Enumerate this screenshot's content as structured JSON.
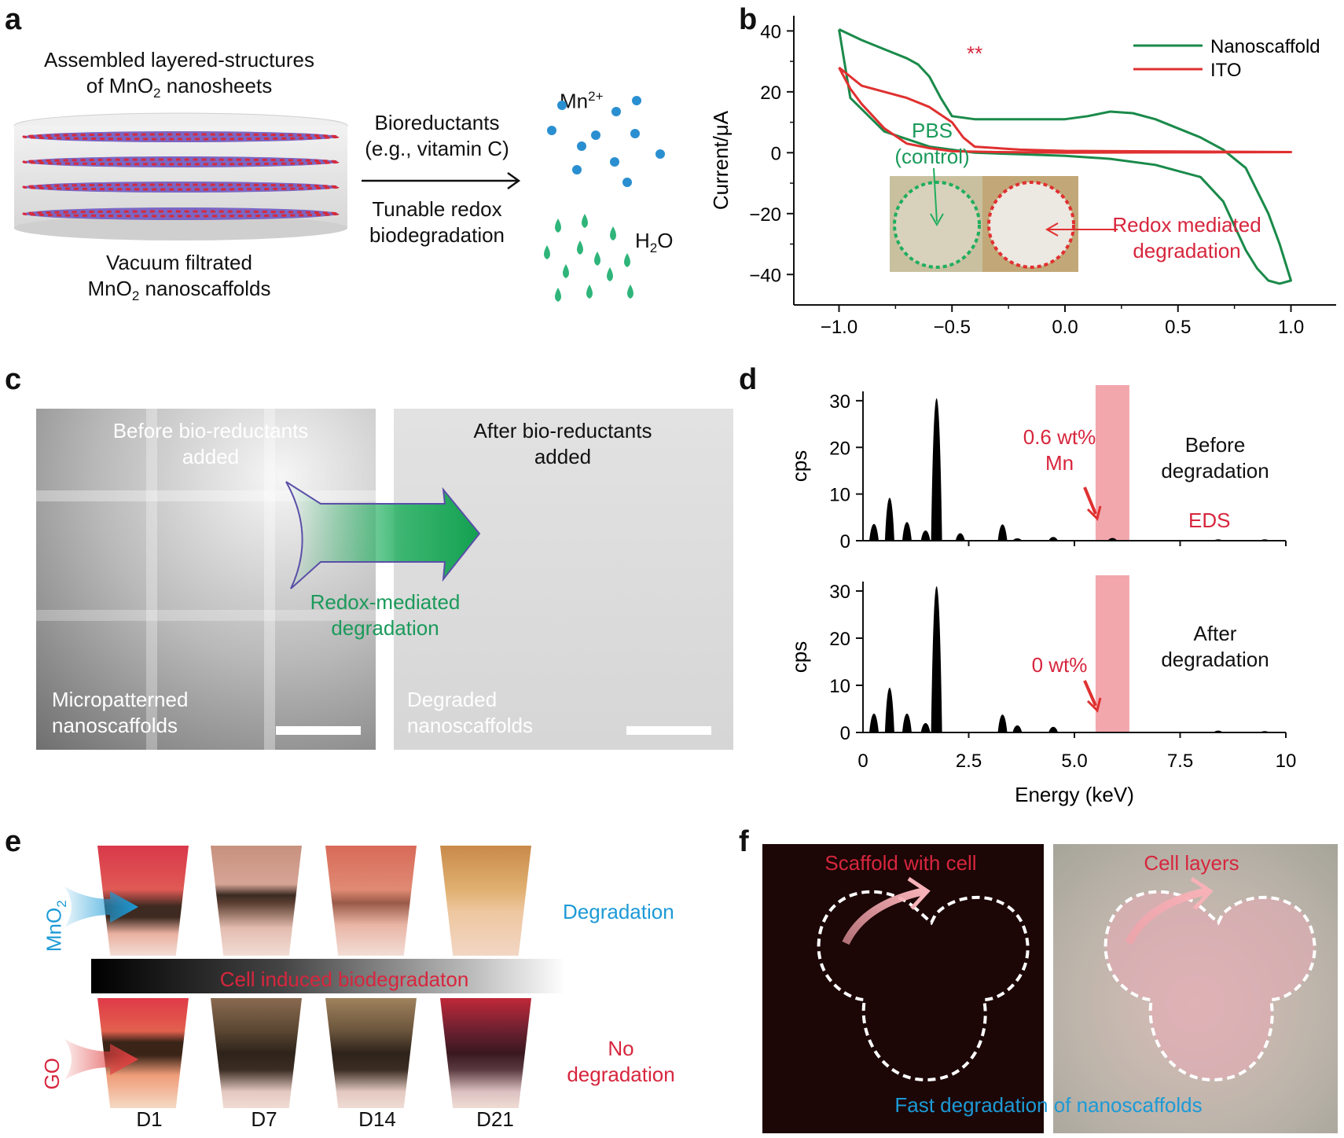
{
  "figure": {
    "panel_labels": [
      "a",
      "b",
      "c",
      "d",
      "e",
      "f"
    ]
  },
  "panel_a": {
    "title_line1": "Assembled layered-structures",
    "title_line2_pre": "of MnO",
    "title_line2_sub": "2",
    "title_line2_post": " nanosheets",
    "arrow_top_line1": "Bioreductants",
    "arrow_top_line2": "(e.g., vitamin C)",
    "arrow_bottom_line1": "Tunable redox",
    "arrow_bottom_line2": "biodegradation",
    "mn_label": "Mn",
    "mn_sup": "2+",
    "h2o_pre": "H",
    "h2o_sub": "2",
    "h2o_post": "O",
    "bottom_line1": "Vacuum filtrated",
    "bottom_line2_pre": "MnO",
    "bottom_line2_sub": "2",
    "bottom_line2_post": " nanoscaffolds",
    "colors": {
      "mn": "#2a8fd0",
      "water": "#2fb57a",
      "layer_red": "#d42b3c",
      "layer_purple": "#7b66c4"
    }
  },
  "panel_b": {
    "stars": "**",
    "pbs_line1": "PBS",
    "pbs_line2": "(control)",
    "redox_line1": "Redox mediated",
    "redox_line2": "degradation"
  },
  "panel_c": {
    "before_line1": "Before bio-reductants",
    "before_line2": "added",
    "after_line1": "After bio-reductants",
    "after_line2": "added",
    "redox_line1": "Redox-mediated",
    "redox_line2": "degradation",
    "left_bottom_line1": "Micropatterned",
    "left_bottom_line2": "nanoscaffolds",
    "right_bottom_line1": "Degraded",
    "right_bottom_line2": "nanoscaffolds"
  },
  "panel_d": {
    "top_annot_line1": "0.6 wt%",
    "top_annot_line2": "Mn",
    "top_state_line1": "Before",
    "top_state_line2": "degradation",
    "eds": "EDS",
    "bottom_annot": "0 wt%",
    "bottom_state_line1": "After",
    "bottom_state_line2": "degradation"
  },
  "panel_e": {
    "mno2_pre": "MnO",
    "mno2_sub": "2",
    "go": "GO",
    "degradation": "Degradation",
    "bar_text": "Cell induced biodegradaton",
    "no_line1": "No",
    "no_line2": "degradation",
    "days": [
      "D1",
      "D7",
      "D14",
      "D21"
    ]
  },
  "panel_f": {
    "left_label": "Scaffold with cell",
    "right_label": "Cell layers",
    "bottom_label": "Fast degradation of nanoscaffolds"
  },
  "chart_data": [
    {
      "type": "line",
      "panel": "b",
      "title": "",
      "xlabel": "",
      "ylabel": "Current/μA",
      "xlim": [
        -1.2,
        1.2
      ],
      "ylim": [
        -50,
        45
      ],
      "xticks": [
        "−1.0",
        "−0.5",
        "0.0",
        "0.5",
        "1.0"
      ],
      "xtick_values": [
        -1.0,
        -0.5,
        0.0,
        0.5,
        1.0
      ],
      "yticks": [
        "40",
        "20",
        "0",
        "−20",
        "−40"
      ],
      "ytick_values": [
        40,
        20,
        0,
        -20,
        -40
      ],
      "legend": [
        "Nanoscaffold",
        "ITO"
      ],
      "legend_position": "top-right",
      "series": [
        {
          "name": "Nanoscaffold",
          "color": "#1a8a4a",
          "x": [
            -1.0,
            -0.9,
            -0.8,
            -0.7,
            -0.65,
            -0.6,
            -0.55,
            -0.5,
            -0.4,
            -0.2,
            0.0,
            0.1,
            0.2,
            0.3,
            0.4,
            0.5,
            0.6,
            0.7,
            0.8,
            0.9,
            0.95,
            1.0,
            1.0,
            0.95,
            0.9,
            0.85,
            0.8,
            0.75,
            0.7,
            0.6,
            0.4,
            0.2,
            0.0,
            -0.2,
            -0.4,
            -0.6,
            -0.8,
            -0.95,
            -1.0
          ],
          "y": [
            40.5,
            37,
            34,
            31,
            29,
            25,
            18,
            12,
            11,
            11,
            11,
            12,
            13.5,
            13,
            11,
            8,
            5,
            1,
            -5,
            -20,
            -30,
            -42,
            -42,
            -43,
            -42,
            -38,
            -32,
            -24,
            -16,
            -8,
            -4,
            -2,
            -1,
            -0.5,
            0,
            2,
            7,
            18,
            40.5
          ]
        },
        {
          "name": "ITO",
          "color": "#e03030",
          "x": [
            -1.0,
            -0.95,
            -0.9,
            -0.8,
            -0.7,
            -0.6,
            -0.5,
            -0.45,
            -0.4,
            -0.2,
            0.0,
            0.5,
            1.0,
            0.5,
            0.0,
            -0.3,
            -0.5,
            -0.6,
            -0.7,
            -0.8,
            -0.9,
            -0.95,
            -1.0
          ],
          "y": [
            28,
            25,
            22,
            20,
            18,
            15,
            10,
            5,
            2,
            1,
            0.6,
            0.4,
            0.2,
            0.1,
            0,
            0.2,
            0.5,
            1.5,
            3,
            8,
            16,
            21,
            28
          ]
        }
      ]
    },
    {
      "type": "bar",
      "panel": "d-top",
      "title": "",
      "xlabel": "",
      "ylabel": "cps",
      "xlim": [
        0,
        10
      ],
      "ylim": [
        0,
        32
      ],
      "yticks": [
        "30",
        "20",
        "10",
        "0"
      ],
      "ytick_values": [
        30,
        20,
        10,
        0
      ],
      "highlight_band": [
        5.5,
        6.3
      ],
      "categories": [
        "0.26",
        "0.63",
        "1.04",
        "1.48",
        "1.74",
        "2.3",
        "3.3",
        "3.65",
        "4.5",
        "5.9",
        "8.4",
        "9.5"
      ],
      "values": [
        3.6,
        9.2,
        4.0,
        2.2,
        30.5,
        1.6,
        3.5,
        0.5,
        0.8,
        0.6,
        0.3,
        0.3
      ]
    },
    {
      "type": "bar",
      "panel": "d-bottom",
      "title": "",
      "xlabel": "Energy (keV)",
      "ylabel": "cps",
      "xlim": [
        0,
        10
      ],
      "ylim": [
        0,
        32
      ],
      "xticks": [
        "0",
        "2.5",
        "5.0",
        "7.5",
        "10"
      ],
      "xtick_values": [
        0,
        2.5,
        5.0,
        7.5,
        10
      ],
      "yticks": [
        "30",
        "20",
        "10",
        "0"
      ],
      "ytick_values": [
        30,
        20,
        10,
        0
      ],
      "highlight_band": [
        5.5,
        6.3
      ],
      "categories": [
        "0.26",
        "0.63",
        "1.04",
        "1.48",
        "1.74",
        "3.3",
        "3.65",
        "4.5",
        "8.4",
        "9.5"
      ],
      "values": [
        4.0,
        9.5,
        4.0,
        2.0,
        31.0,
        3.8,
        1.5,
        1.2,
        0.4,
        0.3
      ]
    }
  ]
}
